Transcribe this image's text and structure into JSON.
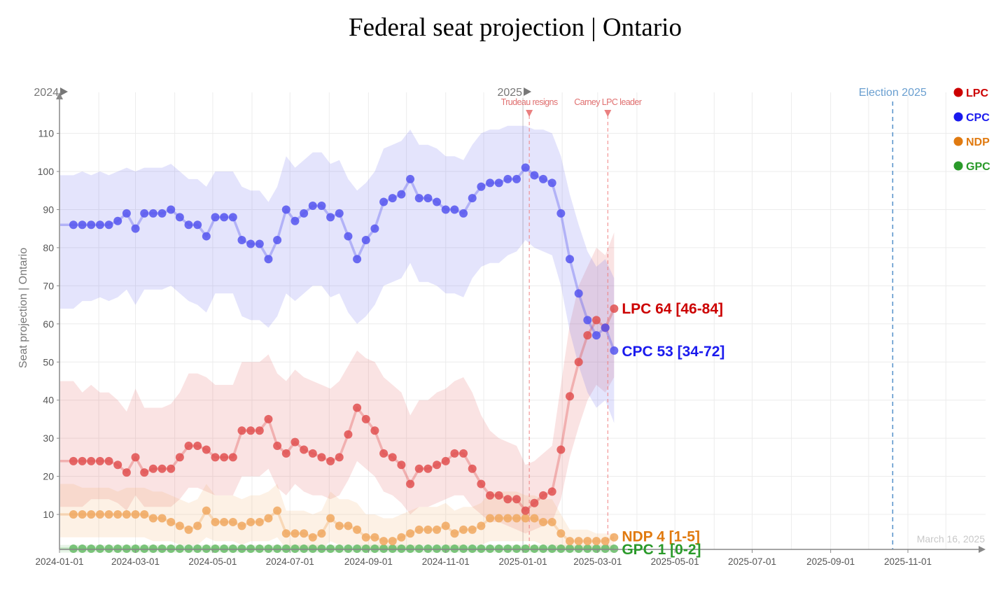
{
  "chart_data": {
    "type": "line",
    "title": "Federal seat projection | Ontario",
    "ylabel": "Seat projection | Ontario",
    "xlabel": "",
    "ylim": [
      0,
      120
    ],
    "yticks": [
      10,
      20,
      30,
      40,
      50,
      60,
      70,
      80,
      90,
      100,
      110
    ],
    "xlim": [
      "2024-01-01",
      "2025-12-01"
    ],
    "xticks": [
      "2024-01-01",
      "2024-03-01",
      "2024-05-01",
      "2024-07-01",
      "2024-09-01",
      "2024-11-01",
      "2025-01-01",
      "2025-03-01",
      "2025-05-01",
      "2025-07-01",
      "2025-09-01",
      "2025-11-01"
    ],
    "year_markers": [
      {
        "label": "2024",
        "date": "2024-01-01"
      },
      {
        "label": "2025",
        "date": "2025-01-01"
      }
    ],
    "events": [
      {
        "label": "Trudeau resigns",
        "date": "2025-01-06"
      },
      {
        "label": "Carney LPC leader",
        "date": "2025-03-09"
      }
    ],
    "election": {
      "label": "Election 2025",
      "date": "2025-10-20"
    },
    "as_of": "March 16, 2025",
    "grid": true,
    "legend_position": "top-right",
    "x": [
      "2024-01-12",
      "2024-01-19",
      "2024-01-26",
      "2024-02-02",
      "2024-02-09",
      "2024-02-16",
      "2024-02-23",
      "2024-03-01",
      "2024-03-08",
      "2024-03-15",
      "2024-03-22",
      "2024-03-29",
      "2024-04-05",
      "2024-04-12",
      "2024-04-19",
      "2024-04-26",
      "2024-05-03",
      "2024-05-10",
      "2024-05-17",
      "2024-05-24",
      "2024-05-31",
      "2024-06-07",
      "2024-06-14",
      "2024-06-21",
      "2024-06-28",
      "2024-07-05",
      "2024-07-12",
      "2024-07-19",
      "2024-07-26",
      "2024-08-02",
      "2024-08-09",
      "2024-08-16",
      "2024-08-23",
      "2024-08-30",
      "2024-09-06",
      "2024-09-13",
      "2024-09-20",
      "2024-09-27",
      "2024-10-04",
      "2024-10-11",
      "2024-10-18",
      "2024-10-25",
      "2024-11-01",
      "2024-11-08",
      "2024-11-15",
      "2024-11-22",
      "2024-11-29",
      "2024-12-06",
      "2024-12-13",
      "2024-12-20",
      "2024-12-27",
      "2025-01-03",
      "2025-01-10",
      "2025-01-17",
      "2025-01-24",
      "2025-01-31",
      "2025-02-07",
      "2025-02-14",
      "2025-02-21",
      "2025-02-28",
      "2025-03-07",
      "2025-03-14"
    ],
    "series": [
      {
        "name": "LPC",
        "color": "#e05050",
        "label_color": "#cc0000",
        "values": [
          24,
          24,
          24,
          24,
          24,
          23,
          21,
          25,
          21,
          22,
          22,
          22,
          25,
          28,
          28,
          27,
          25,
          25,
          25,
          32,
          32,
          32,
          35,
          28,
          26,
          29,
          27,
          26,
          25,
          24,
          25,
          31,
          38,
          35,
          32,
          26,
          25,
          23,
          18,
          22,
          22,
          23,
          24,
          26,
          26,
          22,
          18,
          15,
          15,
          14,
          14,
          11,
          13,
          15,
          16,
          27,
          41,
          50,
          57,
          61,
          59,
          64
        ],
        "low": [
          12,
          12,
          14,
          14,
          14,
          13,
          11,
          15,
          12,
          12,
          12,
          12,
          14,
          17,
          17,
          16,
          15,
          15,
          15,
          20,
          20,
          20,
          22,
          17,
          15,
          18,
          16,
          15,
          15,
          14,
          15,
          19,
          24,
          22,
          20,
          16,
          15,
          13,
          10,
          12,
          12,
          13,
          14,
          15,
          15,
          12,
          10,
          8,
          8,
          7,
          6,
          5,
          6,
          7,
          8,
          14,
          25,
          33,
          40,
          44,
          42,
          46
        ],
        "high": [
          45,
          42,
          44,
          42,
          42,
          40,
          37,
          43,
          38,
          38,
          38,
          39,
          42,
          47,
          47,
          46,
          44,
          44,
          44,
          50,
          50,
          50,
          52,
          47,
          45,
          48,
          46,
          45,
          44,
          43,
          45,
          49,
          53,
          51,
          50,
          46,
          44,
          42,
          36,
          40,
          40,
          42,
          43,
          45,
          46,
          42,
          36,
          32,
          30,
          29,
          28,
          23,
          24,
          26,
          28,
          44,
          60,
          70,
          75,
          80,
          78,
          84
        ],
        "end_label": "LPC 64 [46-84]",
        "legend": "LPC"
      },
      {
        "name": "CPC",
        "color": "#5555ee",
        "label_color": "#1a1aee",
        "values": [
          86,
          86,
          86,
          86,
          86,
          87,
          89,
          85,
          89,
          89,
          89,
          90,
          88,
          86,
          86,
          83,
          88,
          88,
          88,
          82,
          81,
          81,
          77,
          82,
          90,
          87,
          89,
          91,
          91,
          88,
          89,
          83,
          77,
          82,
          85,
          92,
          93,
          94,
          98,
          93,
          93,
          92,
          90,
          90,
          89,
          93,
          96,
          97,
          97,
          98,
          98,
          101,
          99,
          98,
          97,
          89,
          77,
          68,
          61,
          57,
          59,
          53
        ],
        "low": [
          64,
          66,
          66,
          67,
          66,
          67,
          69,
          65,
          69,
          69,
          69,
          70,
          68,
          66,
          65,
          63,
          68,
          68,
          68,
          62,
          61,
          61,
          59,
          62,
          68,
          66,
          68,
          70,
          70,
          67,
          68,
          63,
          60,
          62,
          65,
          70,
          71,
          72,
          76,
          71,
          71,
          70,
          68,
          68,
          67,
          72,
          75,
          76,
          76,
          78,
          79,
          82,
          80,
          79,
          78,
          70,
          58,
          49,
          42,
          38,
          40,
          34
        ],
        "high": [
          99,
          100,
          99,
          100,
          99,
          100,
          101,
          100,
          101,
          101,
          101,
          102,
          100,
          98,
          98,
          96,
          100,
          100,
          100,
          96,
          95,
          95,
          92,
          96,
          104,
          101,
          103,
          105,
          105,
          102,
          103,
          98,
          95,
          97,
          100,
          106,
          107,
          108,
          111,
          107,
          107,
          106,
          104,
          104,
          103,
          107,
          110,
          111,
          111,
          112,
          112,
          112,
          111,
          111,
          110,
          104,
          94,
          86,
          79,
          75,
          77,
          72
        ],
        "end_label": "CPC 53 [34-72]",
        "legend": "CPC"
      },
      {
        "name": "NDP",
        "color": "#f0a860",
        "label_color": "#e07a10",
        "values": [
          10,
          10,
          10,
          10,
          10,
          10,
          10,
          10,
          10,
          9,
          9,
          8,
          7,
          6,
          7,
          11,
          8,
          8,
          8,
          7,
          8,
          8,
          9,
          11,
          5,
          5,
          5,
          4,
          5,
          9,
          7,
          7,
          6,
          4,
          4,
          3,
          3,
          4,
          5,
          6,
          6,
          6,
          7,
          5,
          6,
          6,
          7,
          9,
          9,
          9,
          9,
          9,
          9,
          8,
          8,
          5,
          3,
          3,
          3,
          3,
          3,
          4
        ],
        "low": [
          4,
          4,
          4,
          4,
          4,
          4,
          4,
          4,
          4,
          3,
          3,
          3,
          2,
          2,
          2,
          4,
          3,
          3,
          3,
          2,
          3,
          3,
          3,
          4,
          1,
          1,
          1,
          1,
          1,
          3,
          2,
          2,
          2,
          1,
          1,
          1,
          1,
          1,
          1,
          2,
          2,
          2,
          2,
          1,
          2,
          2,
          2,
          3,
          3,
          3,
          3,
          3,
          3,
          2,
          2,
          1,
          1,
          1,
          1,
          1,
          1,
          1
        ],
        "high": [
          18,
          17,
          17,
          17,
          17,
          16,
          17,
          17,
          17,
          16,
          16,
          15,
          14,
          13,
          14,
          18,
          15,
          15,
          15,
          14,
          15,
          15,
          16,
          18,
          11,
          11,
          11,
          10,
          11,
          16,
          14,
          14,
          13,
          10,
          10,
          9,
          9,
          10,
          11,
          12,
          12,
          12,
          13,
          11,
          12,
          12,
          13,
          16,
          16,
          16,
          16,
          15,
          15,
          14,
          14,
          10,
          6,
          6,
          6,
          5,
          5,
          5
        ],
        "end_label": "NDP 4 [1-5]",
        "legend": "NDP"
      },
      {
        "name": "GPC",
        "color": "#66bb66",
        "label_color": "#2a9a2a",
        "values": [
          1,
          1,
          1,
          1,
          1,
          1,
          1,
          1,
          1,
          1,
          1,
          1,
          1,
          1,
          1,
          1,
          1,
          1,
          1,
          1,
          1,
          1,
          1,
          1,
          1,
          1,
          1,
          1,
          1,
          1,
          1,
          1,
          1,
          1,
          1,
          1,
          1,
          1,
          1,
          1,
          1,
          1,
          1,
          1,
          1,
          1,
          1,
          1,
          1,
          1,
          1,
          1,
          1,
          1,
          1,
          1,
          1,
          1,
          1,
          1,
          1,
          1
        ],
        "low": [
          0,
          0,
          0,
          0,
          0,
          0,
          0,
          0,
          0,
          0,
          0,
          0,
          0,
          0,
          0,
          0,
          0,
          0,
          0,
          0,
          0,
          0,
          0,
          0,
          0,
          0,
          0,
          0,
          0,
          0,
          0,
          0,
          0,
          0,
          0,
          0,
          0,
          0,
          0,
          0,
          0,
          0,
          0,
          0,
          0,
          0,
          0,
          0,
          0,
          0,
          0,
          0,
          0,
          0,
          0,
          0,
          0,
          0,
          0,
          0,
          0,
          0
        ],
        "high": [
          2,
          2,
          2,
          2,
          2,
          2,
          2,
          2,
          2,
          2,
          2,
          2,
          2,
          2,
          2,
          2,
          2,
          2,
          2,
          2,
          2,
          2,
          2,
          2,
          2,
          2,
          2,
          2,
          2,
          2,
          2,
          2,
          2,
          2,
          2,
          2,
          2,
          2,
          2,
          2,
          2,
          2,
          2,
          2,
          2,
          2,
          2,
          2,
          2,
          2,
          2,
          2,
          2,
          2,
          2,
          2,
          2,
          2,
          2,
          2,
          2,
          2
        ],
        "end_label": "GPC 1 [0-2]",
        "legend": "GPC"
      }
    ]
  }
}
